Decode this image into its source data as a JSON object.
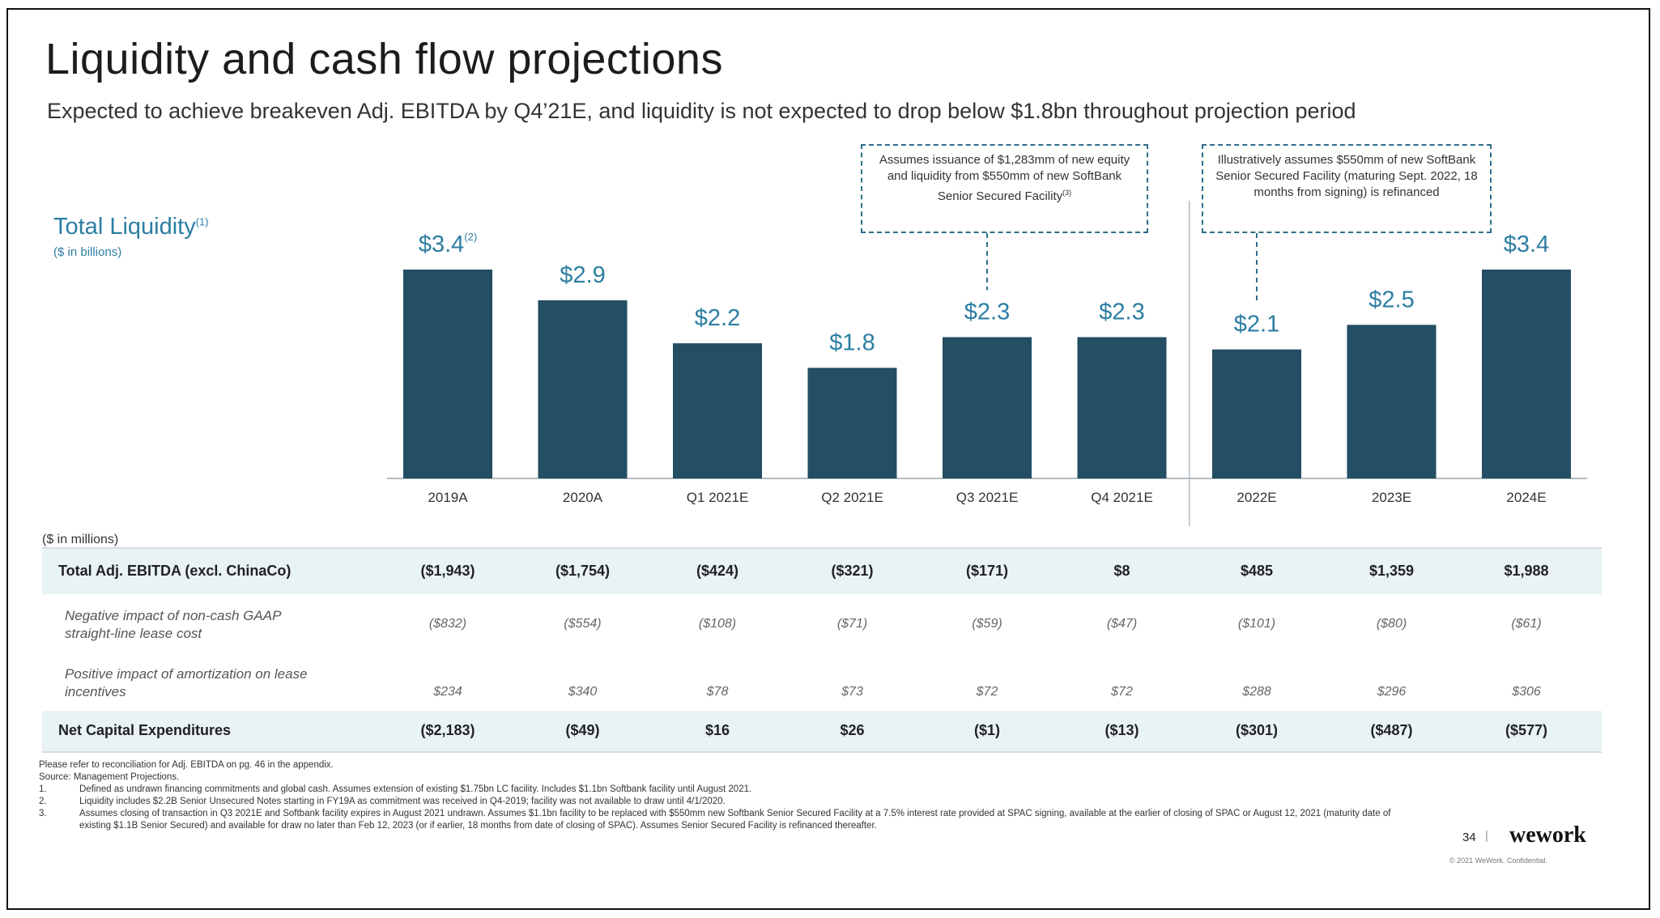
{
  "title": "Liquidity and cash flow projections",
  "subtitle": "Expected to achieve breakeven Adj. EBITDA by Q4’21E, and liquidity is not expected to drop below $1.8bn throughout projection period",
  "colors": {
    "bar": "#234e63",
    "label": "#2d7ea3",
    "band": "#e9f3f6"
  },
  "chart_data": {
    "type": "bar",
    "title": "Total Liquidity",
    "title_footnote": "(1)",
    "unit_label": "($ in billions)",
    "categories": [
      "2019A",
      "2020A",
      "Q1 2021E",
      "Q2 2021E",
      "Q3 2021E",
      "Q4 2021E",
      "2022E",
      "2023E",
      "2024E"
    ],
    "values": [
      3.4,
      2.9,
      2.2,
      1.8,
      2.3,
      2.3,
      2.1,
      2.5,
      3.4
    ],
    "value_labels": [
      "$3.4",
      "$2.9",
      "$2.2",
      "$1.8",
      "$2.3",
      "$2.3",
      "$2.1",
      "$2.5",
      "$3.4"
    ],
    "label_footnotes": [
      "(2)",
      "",
      "",
      "",
      "",
      "",
      "",
      "",
      ""
    ],
    "ylim": [
      0,
      3.4
    ],
    "annotations": [
      {
        "category": "Q3 2021E",
        "text": "Assumes issuance of $1,283mm of new equity and liquidity from $550mm of new SoftBank Senior Secured Facility",
        "footnote": "(3)"
      },
      {
        "category": "2022E",
        "text": "Illustratively assumes $550mm of new SoftBank Senior Secured Facility (maturing Sept. 2022, 18 months from signing) is refinanced",
        "footnote": ""
      }
    ],
    "divider_after_category": "Q4 2021E"
  },
  "table": {
    "unit_label": "($ in millions)",
    "rows": [
      {
        "label": "Total Adj. EBITDA (excl. ChinaCo)",
        "style": "main",
        "values": [
          "($1,943)",
          "($1,754)",
          "($424)",
          "($321)",
          "($171)",
          "$8",
          "$485",
          "$1,359",
          "$1,988"
        ]
      },
      {
        "label": "Negative impact of non-cash GAAP straight-line lease cost",
        "style": "sub",
        "values": [
          "($832)",
          "($554)",
          "($108)",
          "($71)",
          "($59)",
          "($47)",
          "($101)",
          "($80)",
          "($61)"
        ]
      },
      {
        "label": "Positive impact of amortization on lease incentives",
        "style": "sub",
        "values": [
          "$234",
          "$340",
          "$78",
          "$73",
          "$72",
          "$72",
          "$288",
          "$296",
          "$306"
        ]
      },
      {
        "label": "Net Capital Expenditures",
        "style": "main",
        "values": [
          "($2,183)",
          "($49)",
          "$16",
          "$26",
          "($1)",
          "($13)",
          "($301)",
          "($487)",
          "($577)"
        ]
      }
    ]
  },
  "footnotes": {
    "intro": [
      "Please refer to reconciliation for Adj. EBITDA on pg. 46 in the appendix.",
      "Source: Management Projections."
    ],
    "items": [
      {
        "num": "1.",
        "text": "Defined as undrawn financing commitments and global cash. Assumes extension of existing $1.75bn LC facility. Includes $1.1bn Softbank facility until August 2021."
      },
      {
        "num": "2.",
        "text": "Liquidity includes $2.2B Senior Unsecured Notes starting in FY19A as commitment was received in Q4-2019; facility was not available to draw until 4/1/2020."
      },
      {
        "num": "3.",
        "text": "Assumes closing of transaction in Q3 2021E and Softbank facility expires in August 2021 undrawn. Assumes $1.1bn facility to be replaced with $550mm new Softbank Senior Secured Facility at a 7.5% interest rate provided at SPAC signing, available at the earlier of closing of SPAC or August 12, 2021 (maturity date of existing $1.1B Senior Secured) and available for draw no later than Feb 12, 2023 (or if earlier, 18 months from date of closing of SPAC). Assumes Senior Secured Facility is refinanced thereafter."
      }
    ]
  },
  "footer": {
    "page_number": "34",
    "separator": "|",
    "logo": "wework",
    "copyright": "© 2021 WeWork. Confidential."
  }
}
